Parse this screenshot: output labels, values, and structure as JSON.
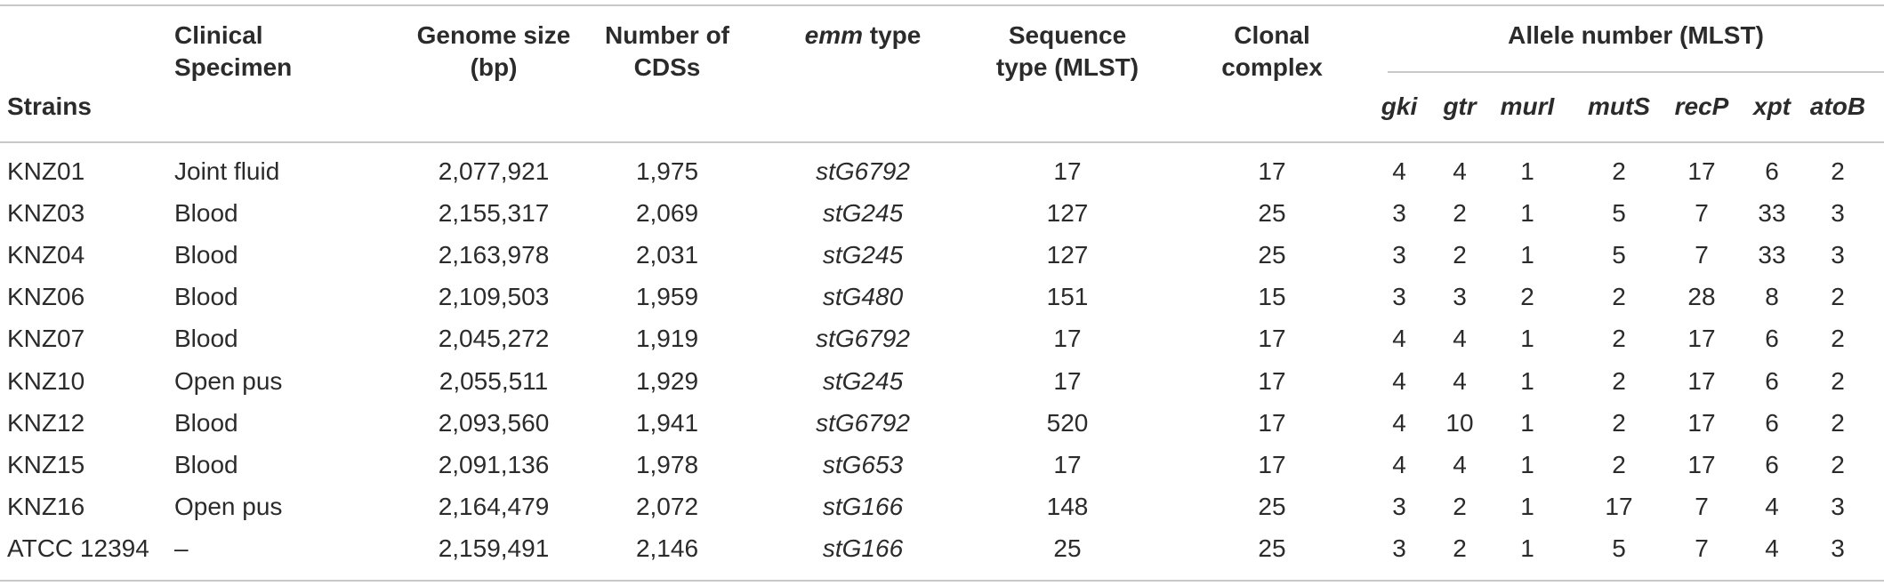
{
  "headers": {
    "strains": "Strains",
    "clinical_specimen": [
      "Clinical",
      "Specimen"
    ],
    "genome_size": [
      "Genome size",
      "(bp)"
    ],
    "cds": [
      "Number of",
      "CDSs"
    ],
    "emm_type_italic": "emm",
    "emm_type_rest": " type",
    "sequence_type": [
      "Sequence",
      "type (MLST)"
    ],
    "clonal_complex": [
      "Clonal",
      "complex"
    ],
    "allele_group": "Allele number (MLST)",
    "alleles": [
      "gki",
      "gtr",
      "murI",
      "mutS",
      "recP",
      "xpt",
      "atoB"
    ]
  },
  "rows": [
    {
      "strain": "KNZ01",
      "specimen": "Joint fluid",
      "genome": "2,077,921",
      "cds": "1,975",
      "emm": "stG6792",
      "st": "17",
      "cc": "17",
      "alleles": [
        "4",
        "4",
        "1",
        "2",
        "17",
        "6",
        "2"
      ]
    },
    {
      "strain": "KNZ03",
      "specimen": "Blood",
      "genome": "2,155,317",
      "cds": "2,069",
      "emm": "stG245",
      "st": "127",
      "cc": "25",
      "alleles": [
        "3",
        "2",
        "1",
        "5",
        "7",
        "33",
        "3"
      ]
    },
    {
      "strain": "KNZ04",
      "specimen": "Blood",
      "genome": "2,163,978",
      "cds": "2,031",
      "emm": "stG245",
      "st": "127",
      "cc": "25",
      "alleles": [
        "3",
        "2",
        "1",
        "5",
        "7",
        "33",
        "3"
      ]
    },
    {
      "strain": "KNZ06",
      "specimen": "Blood",
      "genome": "2,109,503",
      "cds": "1,959",
      "emm": "stG480",
      "st": "151",
      "cc": "15",
      "alleles": [
        "3",
        "3",
        "2",
        "2",
        "28",
        "8",
        "2"
      ]
    },
    {
      "strain": "KNZ07",
      "specimen": "Blood",
      "genome": "2,045,272",
      "cds": "1,919",
      "emm": "stG6792",
      "st": "17",
      "cc": "17",
      "alleles": [
        "4",
        "4",
        "1",
        "2",
        "17",
        "6",
        "2"
      ]
    },
    {
      "strain": "KNZ10",
      "specimen": "Open pus",
      "genome": "2,055,511",
      "cds": "1,929",
      "emm": "stG245",
      "st": "17",
      "cc": "17",
      "alleles": [
        "4",
        "4",
        "1",
        "2",
        "17",
        "6",
        "2"
      ]
    },
    {
      "strain": "KNZ12",
      "specimen": "Blood",
      "genome": "2,093,560",
      "cds": "1,941",
      "emm": "stG6792",
      "st": "520",
      "cc": "17",
      "alleles": [
        "4",
        "10",
        "1",
        "2",
        "17",
        "6",
        "2"
      ]
    },
    {
      "strain": "KNZ15",
      "specimen": "Blood",
      "genome": "2,091,136",
      "cds": "1,978",
      "emm": "stG653",
      "st": "17",
      "cc": "17",
      "alleles": [
        "4",
        "4",
        "1",
        "2",
        "17",
        "6",
        "2"
      ]
    },
    {
      "strain": "KNZ16",
      "specimen": "Open pus",
      "genome": "2,164,479",
      "cds": "2,072",
      "emm": "stG166",
      "st": "148",
      "cc": "25",
      "alleles": [
        "3",
        "2",
        "1",
        "17",
        "7",
        "4",
        "3"
      ]
    },
    {
      "strain": "ATCC 12394",
      "specimen": "–",
      "genome": "2,159,491",
      "cds": "2,146",
      "emm": "stG166",
      "st": "25",
      "cc": "25",
      "alleles": [
        "3",
        "2",
        "1",
        "5",
        "7",
        "4",
        "3"
      ]
    }
  ]
}
